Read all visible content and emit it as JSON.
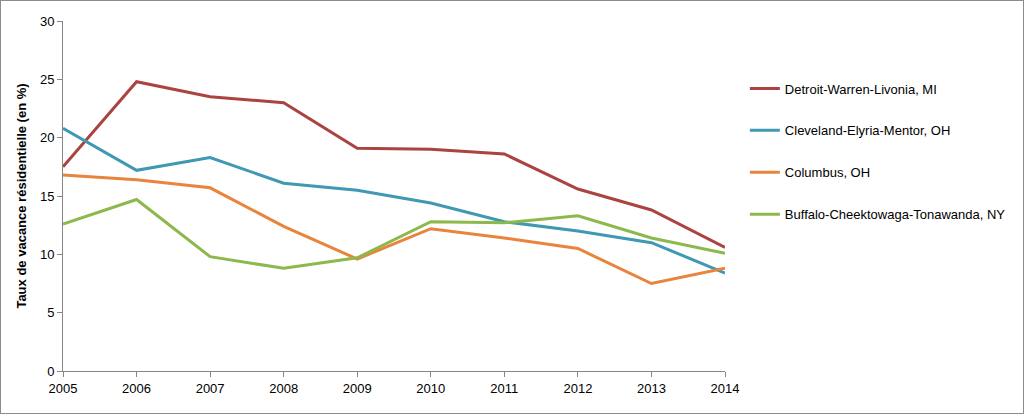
{
  "chart_data": {
    "type": "line",
    "y_label": "Taux de vacance résidentielle (en %)",
    "x": [
      2005,
      2006,
      2007,
      2008,
      2009,
      2010,
      2011,
      2012,
      2013,
      2014
    ],
    "xlim": [
      2005,
      2014
    ],
    "xticks": [
      2005,
      2006,
      2007,
      2008,
      2009,
      2010,
      2011,
      2012,
      2013,
      2014
    ],
    "ylim": [
      0,
      30
    ],
    "yticks": [
      0,
      5,
      10,
      15,
      20,
      25,
      30
    ],
    "grid": false,
    "legend": "right",
    "series": [
      {
        "name": "Detroit-Warren-Livonia, MI",
        "color": "#ab4340",
        "values": [
          17.5,
          24.8,
          23.5,
          23.0,
          19.1,
          19.0,
          18.6,
          15.6,
          13.8,
          10.6
        ]
      },
      {
        "name": "Cleveland-Elyria-Mentor, OH",
        "color": "#3f99b2",
        "values": [
          20.8,
          17.2,
          18.3,
          16.1,
          15.5,
          14.4,
          12.8,
          12.0,
          11.0,
          8.4
        ]
      },
      {
        "name": "Columbus, OH",
        "color": "#e8843c",
        "values": [
          16.8,
          16.4,
          15.7,
          12.4,
          9.6,
          12.2,
          11.4,
          10.5,
          7.5,
          8.8
        ]
      },
      {
        "name": "Buffalo-Cheektowaga-Tonawanda, NY",
        "color": "#8cb84c",
        "values": [
          12.6,
          14.7,
          9.8,
          8.8,
          9.7,
          12.8,
          12.7,
          13.3,
          11.4,
          10.1
        ]
      }
    ]
  }
}
